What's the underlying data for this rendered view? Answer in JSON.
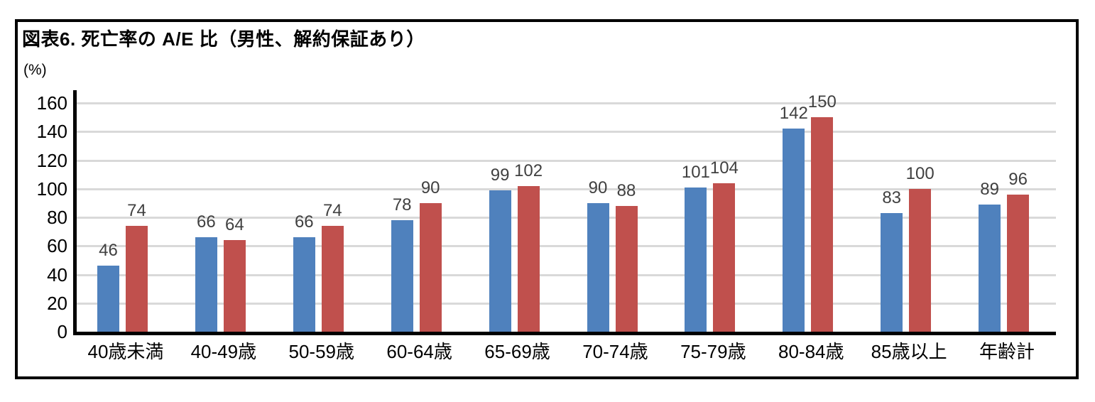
{
  "figure": {
    "title": "図表6. 死亡率の A/E 比（男性、解約保証あり）",
    "unit_label": "(%)"
  },
  "chart_data": {
    "type": "bar",
    "title": "図表6. 死亡率の A/E 比（男性、解約保証あり）",
    "ylabel": "(%)",
    "categories": [
      "40歳未満",
      "40-49歳",
      "50-59歳",
      "60-64歳",
      "65-69歳",
      "70-74歳",
      "75-79歳",
      "80-84歳",
      "85歳以上",
      "年齢計"
    ],
    "series": [
      {
        "name": "blue-series",
        "color": "#4F81BD",
        "values": [
          46,
          66,
          66,
          78,
          99,
          90,
          101,
          142,
          83,
          89
        ]
      },
      {
        "name": "red-series",
        "color": "#C0504D",
        "values": [
          74,
          64,
          74,
          90,
          102,
          88,
          104,
          150,
          100,
          96
        ]
      }
    ],
    "ylim": [
      0,
      160
    ],
    "yticks": [
      0,
      20,
      40,
      60,
      80,
      100,
      120,
      140,
      160
    ],
    "grid": true,
    "legend": "none",
    "data_labels": true
  },
  "colors": {
    "bar_blue": "#4F81BD",
    "bar_red": "#C0504D",
    "gridline": "#d9d9d9",
    "axis": "#000000",
    "value_label": "#404040",
    "frame_border": "#000000",
    "background": "#ffffff"
  }
}
